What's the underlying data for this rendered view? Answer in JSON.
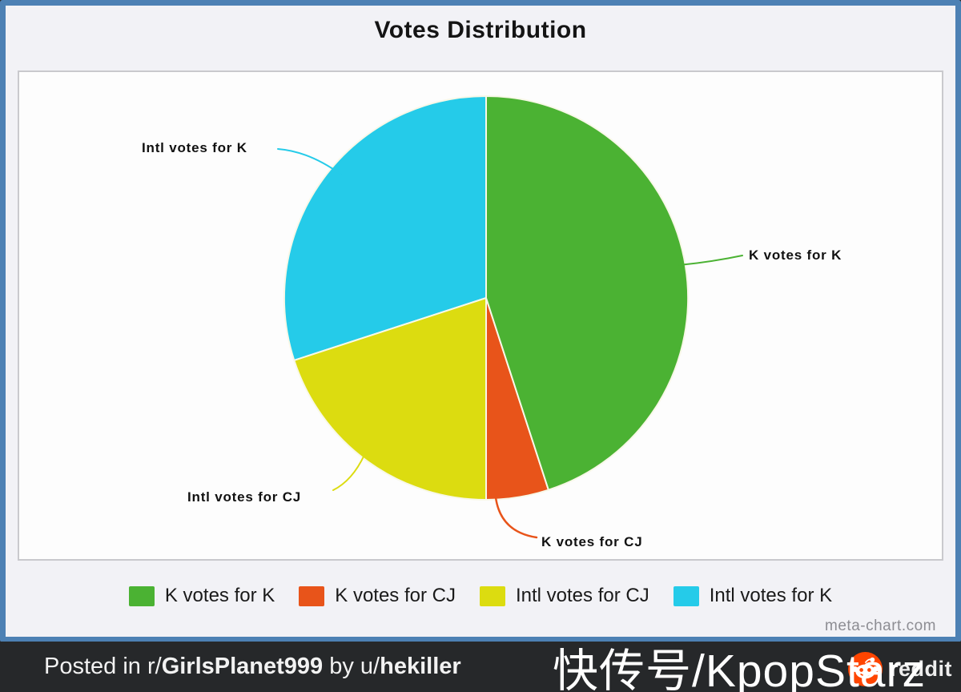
{
  "chart": {
    "title": "Votes Distribution",
    "source_watermark": "meta-chart.com"
  },
  "chart_data": {
    "type": "pie",
    "title": "Votes Distribution",
    "categories": [
      "K votes for K",
      "K votes for CJ",
      "Intl votes for CJ",
      "Intl votes for K"
    ],
    "values": [
      45,
      5,
      20,
      30
    ],
    "values_unit": "percent (estimated from slice angles, no numeric labels shown)",
    "colors": [
      "#4bb233",
      "#e8541a",
      "#dcdc10",
      "#25cbe9"
    ],
    "slice_border_color": "#f8f8e8",
    "start_angle_deg": 0,
    "direction": "clockwise",
    "legend_position": "bottom",
    "callout_labels": [
      "K votes for K",
      "K votes for CJ",
      "Intl votes for CJ",
      "Intl votes for K"
    ]
  },
  "footer": {
    "posted_prefix": "Posted in r/",
    "subreddit": "GirlsPlanet999",
    "by_infix": " by u/",
    "username": "hekiller",
    "reddit_wordmark": "reddit"
  },
  "overlay": {
    "watermark": "快传号/KpopStarz"
  },
  "colors": {
    "frame_blue": "#4d81b4",
    "card_background": "#f2f2f6",
    "plot_background": "#fdfdfd",
    "footer_background": "#26282a",
    "reddit_orange": "#ff4500"
  }
}
